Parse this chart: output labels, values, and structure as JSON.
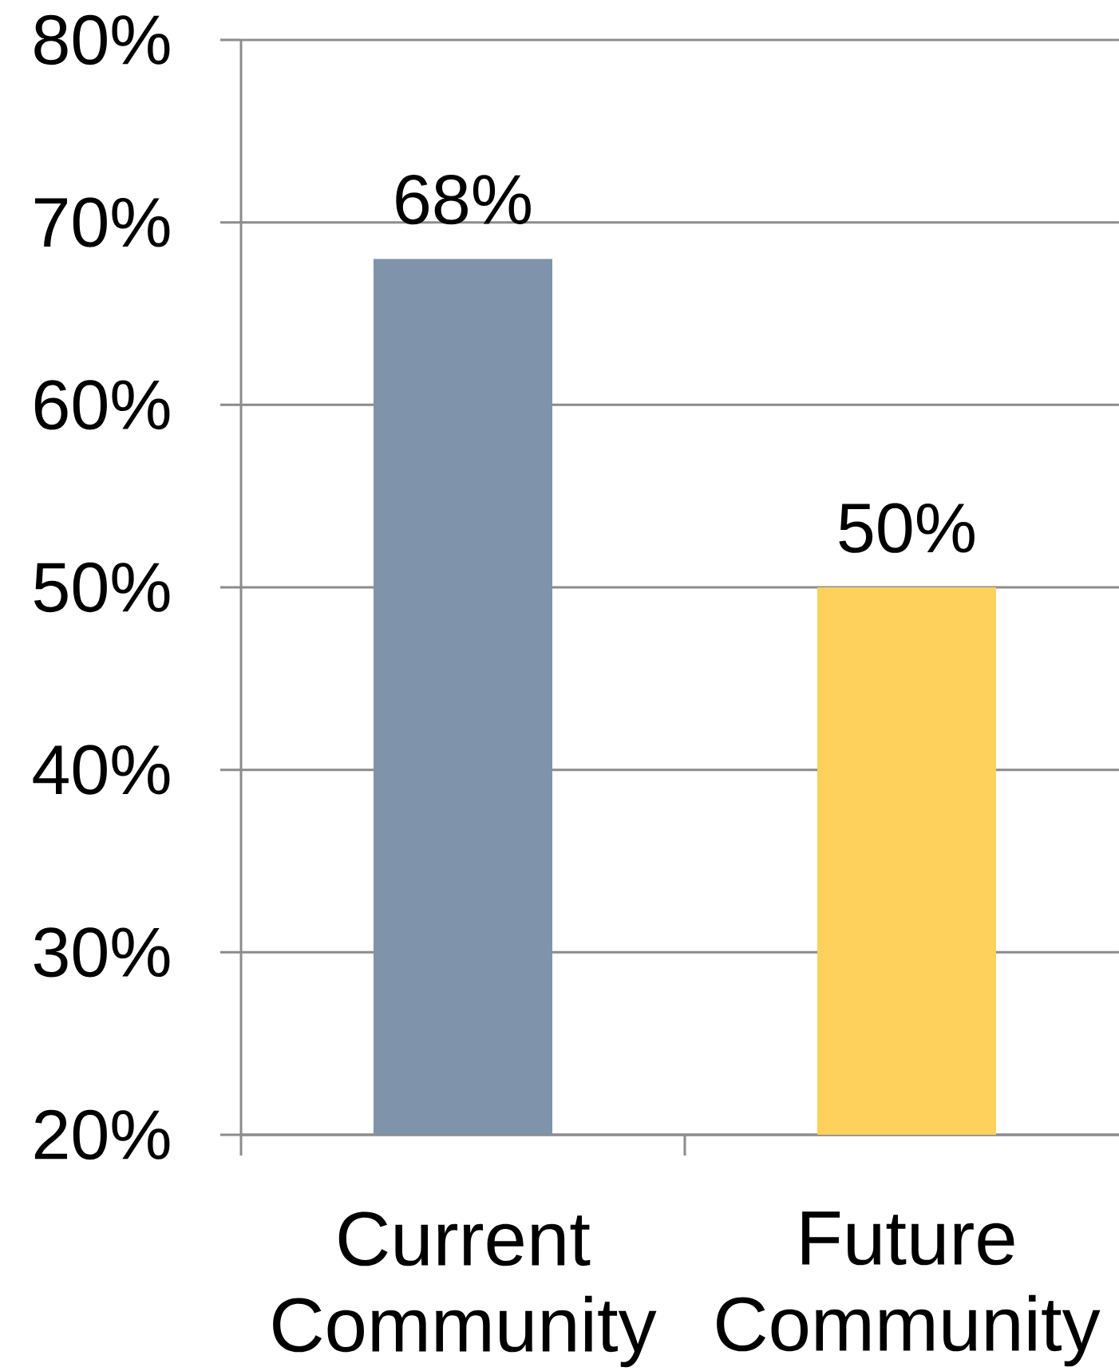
{
  "chart_data": {
    "type": "bar",
    "categories": [
      "Current Community",
      "Future Community"
    ],
    "values": [
      68,
      50
    ],
    "colors": [
      "#7f93aa",
      "#fdd15c"
    ],
    "value_labels": [
      "68%",
      "50%"
    ],
    "ylim": [
      20,
      80
    ],
    "yticks": [
      {
        "value": 20,
        "label": "20%"
      },
      {
        "value": 30,
        "label": "30%"
      },
      {
        "value": 40,
        "label": "40%"
      },
      {
        "value": 50,
        "label": "50%"
      },
      {
        "value": 60,
        "label": "60%"
      },
      {
        "value": 70,
        "label": "70%"
      },
      {
        "value": 80,
        "label": "80%"
      }
    ],
    "grid": "y"
  }
}
